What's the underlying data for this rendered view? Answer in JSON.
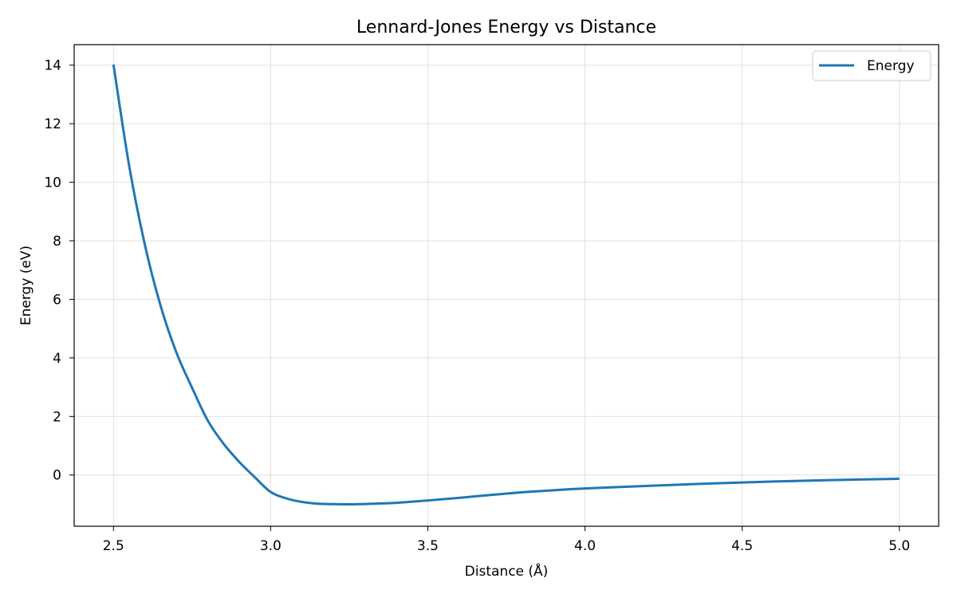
{
  "chart_data": {
    "type": "line",
    "title": "Lennard-Jones Energy vs Distance",
    "xlabel": "Distance (Å)",
    "ylabel": "Energy (eV)",
    "xlim": [
      2.375,
      5.125
    ],
    "ylim": [
      -1.75,
      14.7
    ],
    "xticks": [
      2.5,
      3.0,
      3.5,
      4.0,
      4.5,
      5.0
    ],
    "xtick_labels": [
      "2.5",
      "3.0",
      "3.5",
      "4.0",
      "4.5",
      "5.0"
    ],
    "yticks": [
      0,
      2,
      4,
      6,
      8,
      10,
      12,
      14
    ],
    "ytick_labels": [
      "0",
      "2",
      "4",
      "6",
      "8",
      "10",
      "12",
      "14"
    ],
    "grid": true,
    "legend": "top-right",
    "series": [
      {
        "name": "Energy",
        "color": "#1f77b4",
        "x": [
          2.5,
          2.55,
          2.6,
          2.65,
          2.7,
          2.75,
          2.8,
          2.85,
          2.9,
          2.95,
          3.0,
          3.05,
          3.1,
          3.15,
          3.2,
          3.25,
          3.3,
          3.35,
          3.4,
          3.5,
          3.6,
          3.7,
          3.8,
          3.9,
          4.0,
          4.2,
          4.4,
          4.6,
          4.8,
          5.0
        ],
        "y": [
          14.02,
          10.56,
          7.86,
          5.78,
          4.19,
          2.98,
          1.86,
          1.07,
          0.45,
          -0.08,
          -0.58,
          -0.8,
          -0.92,
          -0.98,
          -0.995,
          -1.0,
          -0.99,
          -0.97,
          -0.95,
          -0.87,
          -0.78,
          -0.68,
          -0.59,
          -0.52,
          -0.46,
          -0.37,
          -0.29,
          -0.22,
          -0.17,
          -0.13
        ]
      }
    ]
  }
}
